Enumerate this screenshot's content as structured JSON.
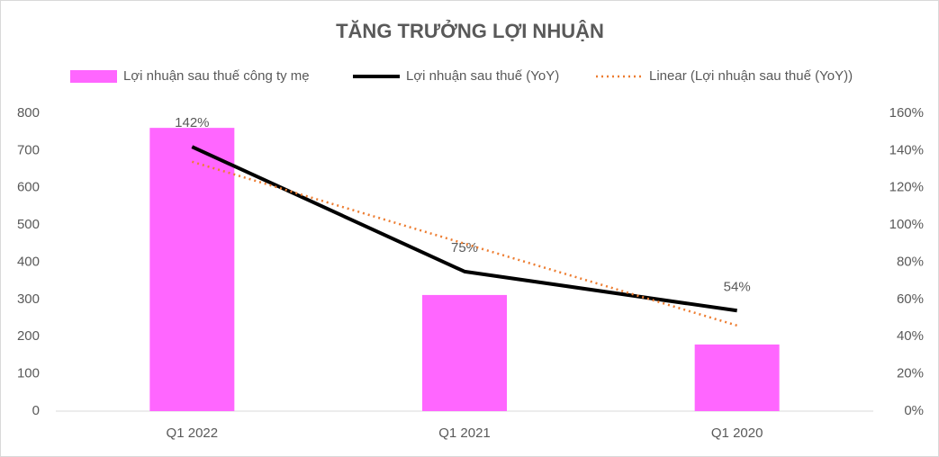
{
  "chart_data": {
    "type": "bar-line",
    "title": "TĂNG TRƯỞNG LỢI NHUẬN",
    "categories": [
      "Q1 2022",
      "Q1 2021",
      "Q1 2020"
    ],
    "series": [
      {
        "name": "Lợi nhuận sau thuế công ty mẹ",
        "type": "bar",
        "color": "#ff66ff",
        "values": [
          761,
          312,
          179
        ]
      },
      {
        "name": "Lợi nhuận sau thuế (YoY)",
        "type": "line",
        "axis": "y2",
        "color": "#000000",
        "values": [
          142,
          75,
          54
        ],
        "value_labels": [
          "142%",
          "75%",
          "54%"
        ]
      },
      {
        "name": "Linear (Lợi nhuận sau thuế (YoY))",
        "type": "trendline",
        "axis": "y2",
        "color": "#ed7d31",
        "values": [
          134,
          90,
          46
        ]
      }
    ],
    "ylim": [
      0,
      800
    ],
    "yticks": [
      0,
      100,
      200,
      300,
      400,
      500,
      600,
      700,
      800
    ],
    "y2lim": [
      0,
      160
    ],
    "y2ticks": [
      {
        "value": 0,
        "label": "0%"
      },
      {
        "value": 20,
        "label": "20%"
      },
      {
        "value": 40,
        "label": "40%"
      },
      {
        "value": 60,
        "label": "60%"
      },
      {
        "value": 80,
        "label": "80%"
      },
      {
        "value": 100,
        "label": "100%"
      },
      {
        "value": 120,
        "label": "120%"
      },
      {
        "value": 140,
        "label": "140%"
      },
      {
        "value": 160,
        "label": "160%"
      }
    ],
    "grid": false,
    "legend": "top"
  }
}
